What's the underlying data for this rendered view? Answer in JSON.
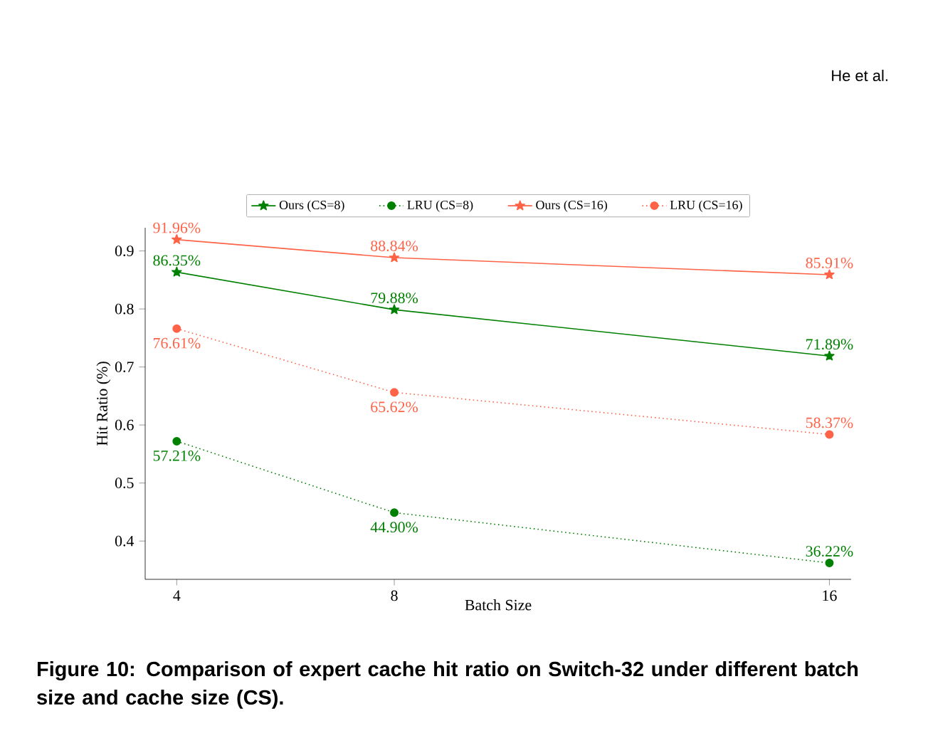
{
  "chart_data": {
    "type": "line",
    "xlabel": "Batch Size",
    "ylabel": "Hit Ratio (%)",
    "x": [
      4,
      8,
      16
    ],
    "xlim": [
      3.42,
      16.4
    ],
    "xticks": [
      4,
      8,
      16
    ],
    "ylim": [
      0.334,
      0.94
    ],
    "yticks": [
      0.4,
      0.5,
      0.6,
      0.7,
      0.8,
      0.9
    ],
    "legend": "top",
    "series": [
      {
        "name": "Ours (CS=8)",
        "color": "#008000",
        "marker": "star",
        "line_style": "solid",
        "values": [
          0.8635,
          0.7988,
          0.7189
        ],
        "value_labels": [
          "86.35%",
          "79.88%",
          "71.89%"
        ]
      },
      {
        "name": "LRU (CS=8)",
        "color": "#008000",
        "marker": "circle",
        "line_style": "dotted",
        "values": [
          0.5721,
          0.449,
          0.3622
        ],
        "value_labels": [
          "57.21%",
          "44.90%",
          "36.22%"
        ]
      },
      {
        "name": "Ours (CS=16)",
        "color": "#ff6347",
        "marker": "star",
        "line_style": "solid",
        "values": [
          0.9196,
          0.8884,
          0.8591
        ],
        "value_labels": [
          "91.96%",
          "88.84%",
          "85.91%"
        ]
      },
      {
        "name": "LRU (CS=16)",
        "color": "#ff6347",
        "marker": "circle",
        "line_style": "dotted",
        "values": [
          0.7661,
          0.6562,
          0.5837
        ],
        "value_labels": [
          "76.61%",
          "65.62%",
          "58.37%"
        ]
      }
    ],
    "annotations": [
      "He et al.",
      "Figure 10: Comparison of expert cache hit ratio on Switch-32 under different batch size and cache size (CS)."
    ]
  }
}
